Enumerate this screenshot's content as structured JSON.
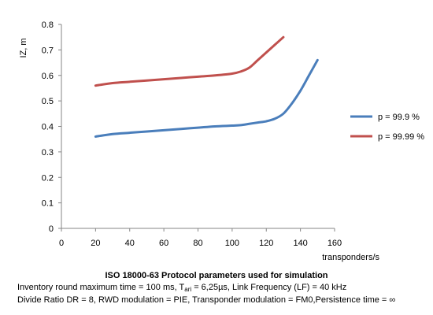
{
  "chart_data": {
    "type": "line",
    "ylabel": "IZ, m",
    "xlabel": "transponders/s",
    "xlim": [
      0,
      160
    ],
    "ylim": [
      0,
      0.8
    ],
    "xticks": [
      "0",
      "20",
      "40",
      "60",
      "80",
      "100",
      "120",
      "140",
      "160"
    ],
    "yticks": [
      "0",
      "0.1",
      "0.2",
      "0.3",
      "0.4",
      "0.5",
      "0.6",
      "0.7",
      "0.8"
    ],
    "grid": false,
    "legend_position": "right",
    "series": [
      {
        "name": "p = 99.9 %",
        "color": "#4a7ebb",
        "x": [
          20,
          30,
          40,
          50,
          60,
          70,
          80,
          90,
          100,
          105,
          110,
          115,
          120,
          125,
          130,
          135,
          140,
          145,
          150
        ],
        "y": [
          0.36,
          0.37,
          0.375,
          0.38,
          0.385,
          0.39,
          0.395,
          0.4,
          0.403,
          0.405,
          0.41,
          0.415,
          0.42,
          0.43,
          0.45,
          0.49,
          0.54,
          0.6,
          0.66
        ]
      },
      {
        "name": "p = 99.99 %",
        "color": "#c0504d",
        "x": [
          20,
          30,
          40,
          50,
          60,
          70,
          80,
          90,
          100,
          105,
          110,
          115,
          120,
          125,
          130
        ],
        "y": [
          0.56,
          0.57,
          0.575,
          0.58,
          0.585,
          0.59,
          0.595,
          0.6,
          0.607,
          0.615,
          0.63,
          0.66,
          0.69,
          0.72,
          0.75
        ]
      }
    ]
  },
  "caption": {
    "title": "ISO 18000-63 Protocol parameters used for simulation",
    "line1_a": "Inventory round maximum time  =  100 ms, T",
    "line1_sub": "ari",
    "line1_b": " = 6,25µs, Link Frequency (LF) =  40 kHz",
    "line2": "Divide Ratio DR =  8, RWD modulation = PIE, Transponder modulation = FM0,Persistence time =  ∞"
  }
}
